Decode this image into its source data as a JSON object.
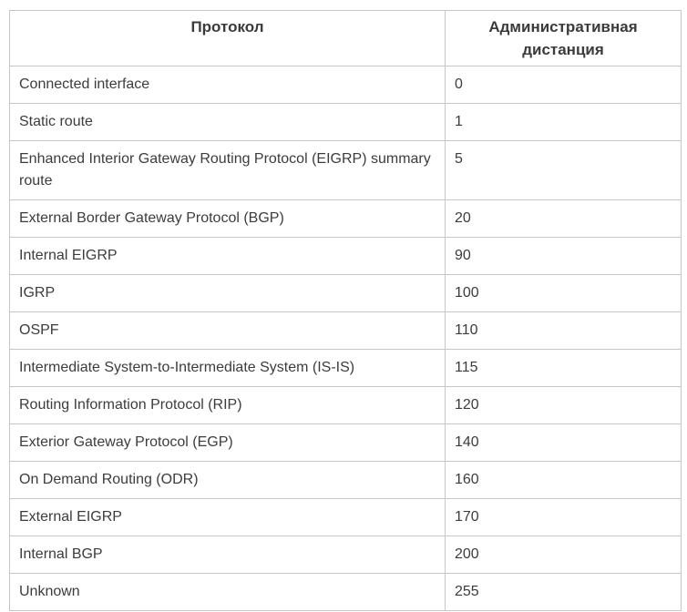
{
  "table": {
    "columns": [
      {
        "label": "Протокол"
      },
      {
        "label": "Административная дистанция"
      }
    ],
    "rows": [
      {
        "protocol": "Connected interface",
        "distance": "0"
      },
      {
        "protocol": "Static route",
        "distance": "1"
      },
      {
        "protocol": "Enhanced Interior Gateway Routing Protocol (EIGRP) summary route",
        "distance": "5"
      },
      {
        "protocol": "External Border Gateway Protocol (BGP)",
        "distance": "20"
      },
      {
        "protocol": "Internal EIGRP",
        "distance": "90"
      },
      {
        "protocol": "IGRP",
        "distance": "100"
      },
      {
        "protocol": "OSPF",
        "distance": "110"
      },
      {
        "protocol": "Intermediate System-to-Intermediate System (IS-IS)",
        "distance": "115"
      },
      {
        "protocol": "Routing Information Protocol (RIP)",
        "distance": "120"
      },
      {
        "protocol": "Exterior Gateway Protocol (EGP)",
        "distance": "140"
      },
      {
        "protocol": "On Demand Routing (ODR)",
        "distance": "160"
      },
      {
        "protocol": "External EIGRP",
        "distance": "170"
      },
      {
        "protocol": "Internal BGP",
        "distance": "200"
      },
      {
        "protocol": "Unknown",
        "distance": "255"
      }
    ]
  },
  "colors": {
    "border": "#c6c6c6",
    "header_text": "#3b3b3b",
    "body_text": "#3c3c3c",
    "background": "#ffffff"
  }
}
